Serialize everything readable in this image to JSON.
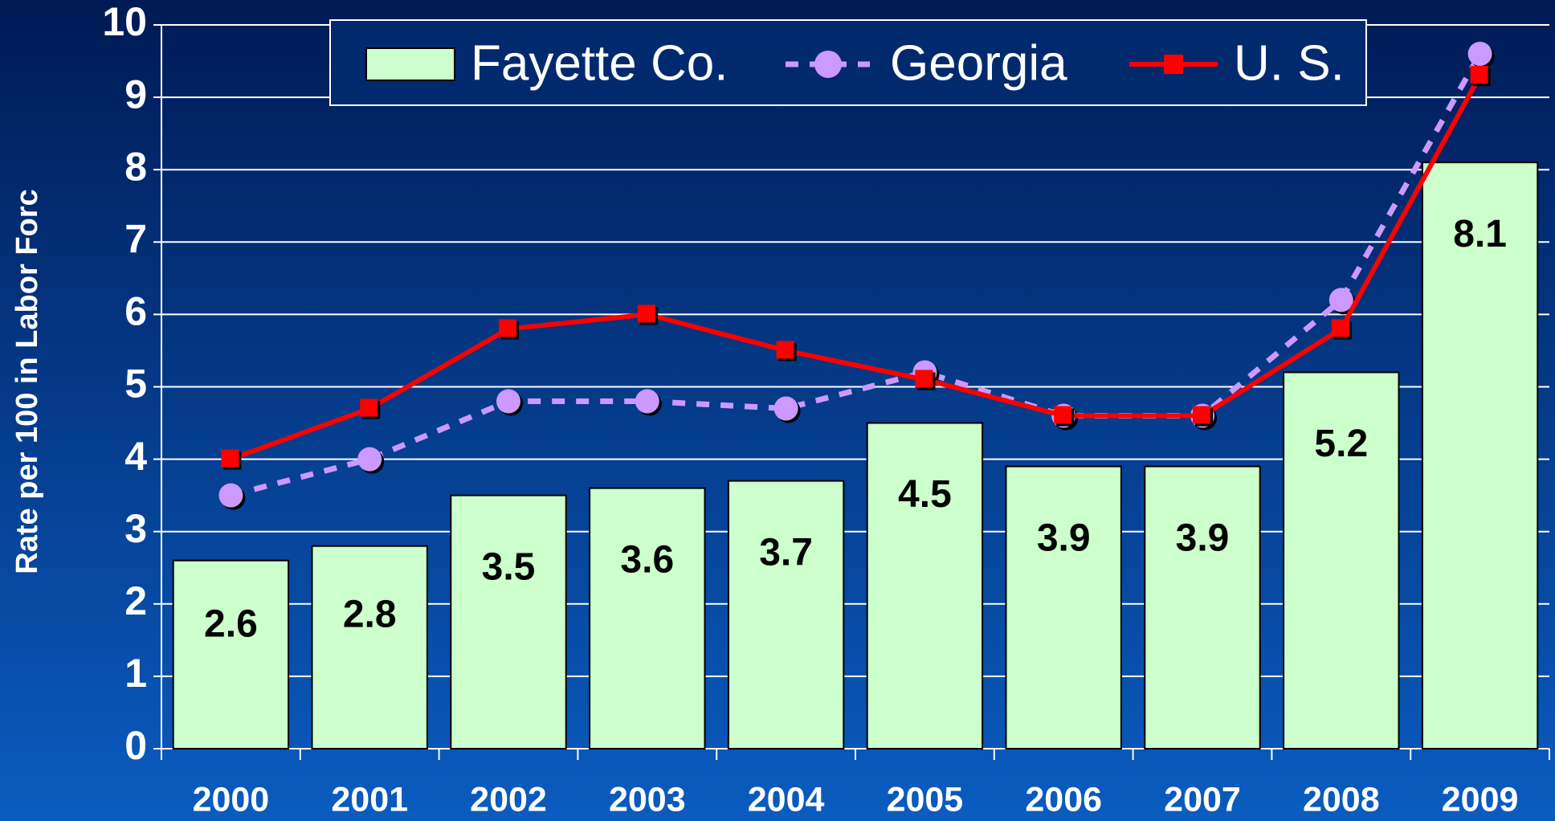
{
  "chart_data": {
    "type": "bar_line",
    "ylabel": "Rate per 100 in Labor Forc",
    "categories": [
      "2000",
      "2001",
      "2002",
      "2003",
      "2004",
      "2005",
      "2006",
      "2007",
      "2008",
      "2009"
    ],
    "series": [
      {
        "name": "Fayette Co.",
        "type": "bar",
        "color": "#ccffcc",
        "values": [
          2.6,
          2.8,
          3.5,
          3.6,
          3.7,
          4.5,
          3.9,
          3.9,
          5.2,
          8.1
        ]
      },
      {
        "name": "Georgia",
        "type": "line",
        "color": "#cc99ff",
        "values": [
          3.5,
          4.0,
          4.8,
          4.8,
          4.7,
          5.2,
          4.6,
          4.6,
          6.2,
          9.6
        ]
      },
      {
        "name": "U. S.",
        "type": "line",
        "color": "#ff0000",
        "values": [
          4.0,
          4.7,
          5.8,
          6.0,
          5.5,
          5.1,
          4.6,
          4.6,
          5.8,
          9.3
        ]
      }
    ],
    "ylim": [
      0,
      10
    ],
    "yticks": [
      0,
      1,
      2,
      3,
      4,
      5,
      6,
      7,
      8,
      9,
      10
    ],
    "grid": true
  }
}
